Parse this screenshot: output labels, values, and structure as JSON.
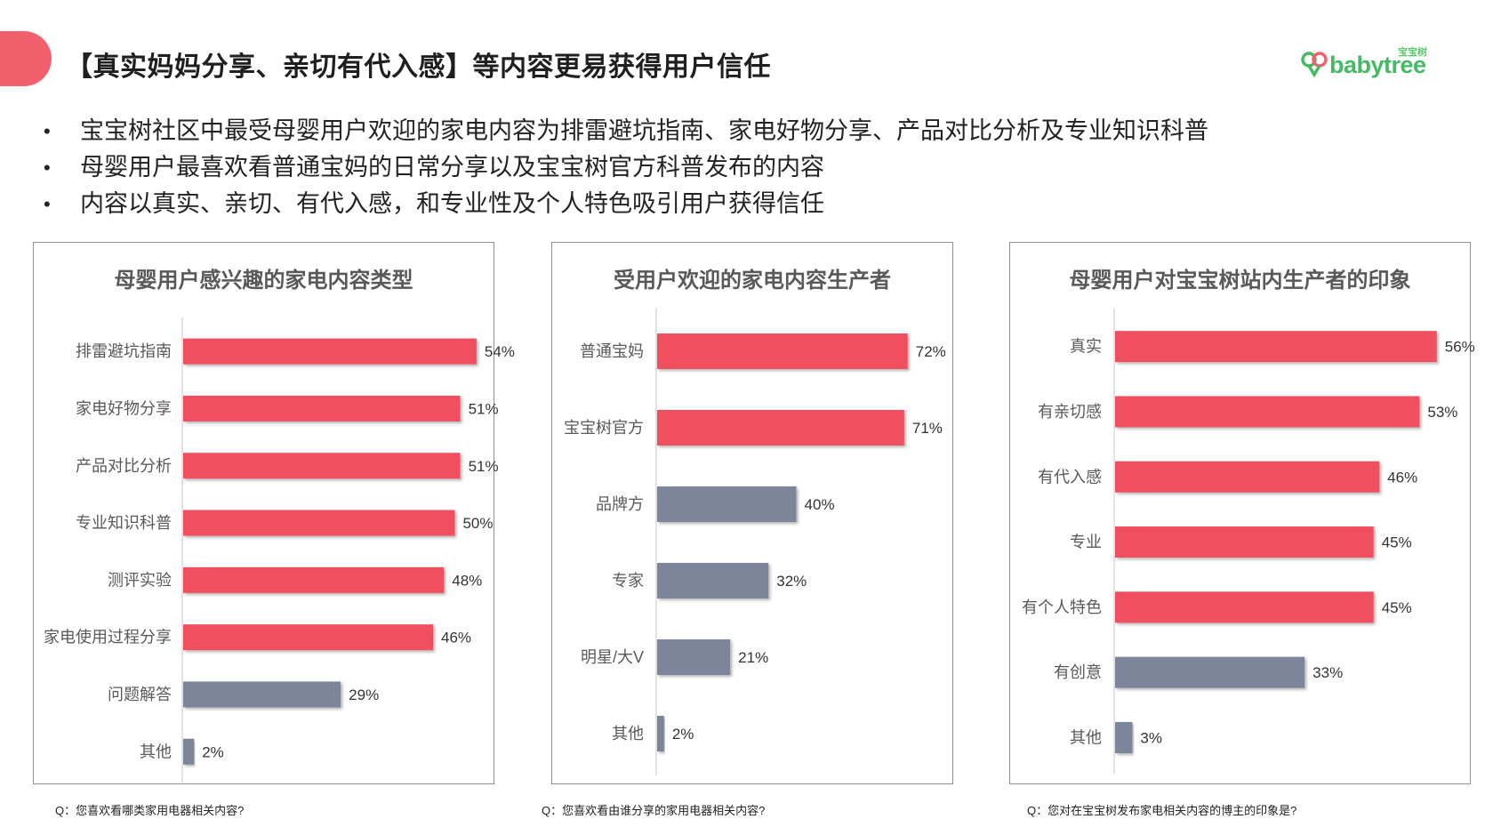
{
  "page": {
    "title": "【真实妈妈分享、亲切有代入感】等内容更易获得用户信任",
    "logo_cn": "宝宝树",
    "logo_en": "babytree"
  },
  "bullets": [
    "宝宝树社区中最受母婴用户欢迎的家电内容为排雷避坑指南、家电好物分享、产品对比分析及专业知识科普",
    "母婴用户最喜欢看普通宝妈的日常分享以及宝宝树官方科普发布的内容",
    "内容以真实、亲切、有代入感，和专业性及个人特色吸引用户获得信任"
  ],
  "bullet_glyph": "•",
  "colors": {
    "accent": "#f2606e",
    "bar_red": "#f0505f",
    "bar_gray": "#7b8599",
    "brand_green": "#46b964"
  },
  "chart_data": [
    {
      "type": "bar",
      "orientation": "horizontal",
      "title": "母婴用户感兴趣的家电内容类型",
      "categories": [
        "排雷避坑指南",
        "家电好物分享",
        "产品对比分析",
        "专业知识科普",
        "测评实验",
        "家电使用过程分享",
        "问题解答",
        "其他"
      ],
      "values": [
        54,
        51,
        51,
        50,
        48,
        46,
        29,
        2
      ],
      "value_labels": [
        "54%",
        "51%",
        "51%",
        "50%",
        "48%",
        "46%",
        "29%",
        "2%"
      ],
      "bar_colors": [
        "#f0505f",
        "#f0505f",
        "#f0505f",
        "#f0505f",
        "#f0505f",
        "#f0505f",
        "#7b8599",
        "#7b8599"
      ],
      "xlim": [
        0,
        55
      ],
      "footnote": "Q：您喜欢看哪类家用电器相关内容?"
    },
    {
      "type": "bar",
      "orientation": "horizontal",
      "title": "受用户欢迎的家电内容生产者",
      "categories": [
        "普通宝妈",
        "宝宝树官方",
        "品牌方",
        "专家",
        "明星/大V",
        "其他"
      ],
      "values": [
        72,
        71,
        40,
        32,
        21,
        2
      ],
      "value_labels": [
        "72%",
        "71%",
        "40%",
        "32%",
        "21%",
        "2%"
      ],
      "bar_colors": [
        "#f0505f",
        "#f0505f",
        "#7b8599",
        "#7b8599",
        "#7b8599",
        "#7b8599"
      ],
      "xlim": [
        0,
        81
      ],
      "footnote": "Q：您喜欢看由谁分享的家用电器相关内容?"
    },
    {
      "type": "bar",
      "orientation": "horizontal",
      "title": "母婴用户对宝宝树站内生产者的印象",
      "categories": [
        "真实",
        "有亲切感",
        "有代入感",
        "专业",
        "有个人特色",
        "有创意",
        "其他"
      ],
      "values": [
        56,
        53,
        46,
        45,
        45,
        33,
        3
      ],
      "value_labels": [
        "56%",
        "53%",
        "46%",
        "45%",
        "45%",
        "33%",
        "3%"
      ],
      "bar_colors": [
        "#f0505f",
        "#f0505f",
        "#f0505f",
        "#f0505f",
        "#f0505f",
        "#7b8599",
        "#7b8599"
      ],
      "xlim": [
        0,
        56.5
      ],
      "footnote": "Q：您对在宝宝树发布家电相关内容的博主的印象是?"
    }
  ]
}
